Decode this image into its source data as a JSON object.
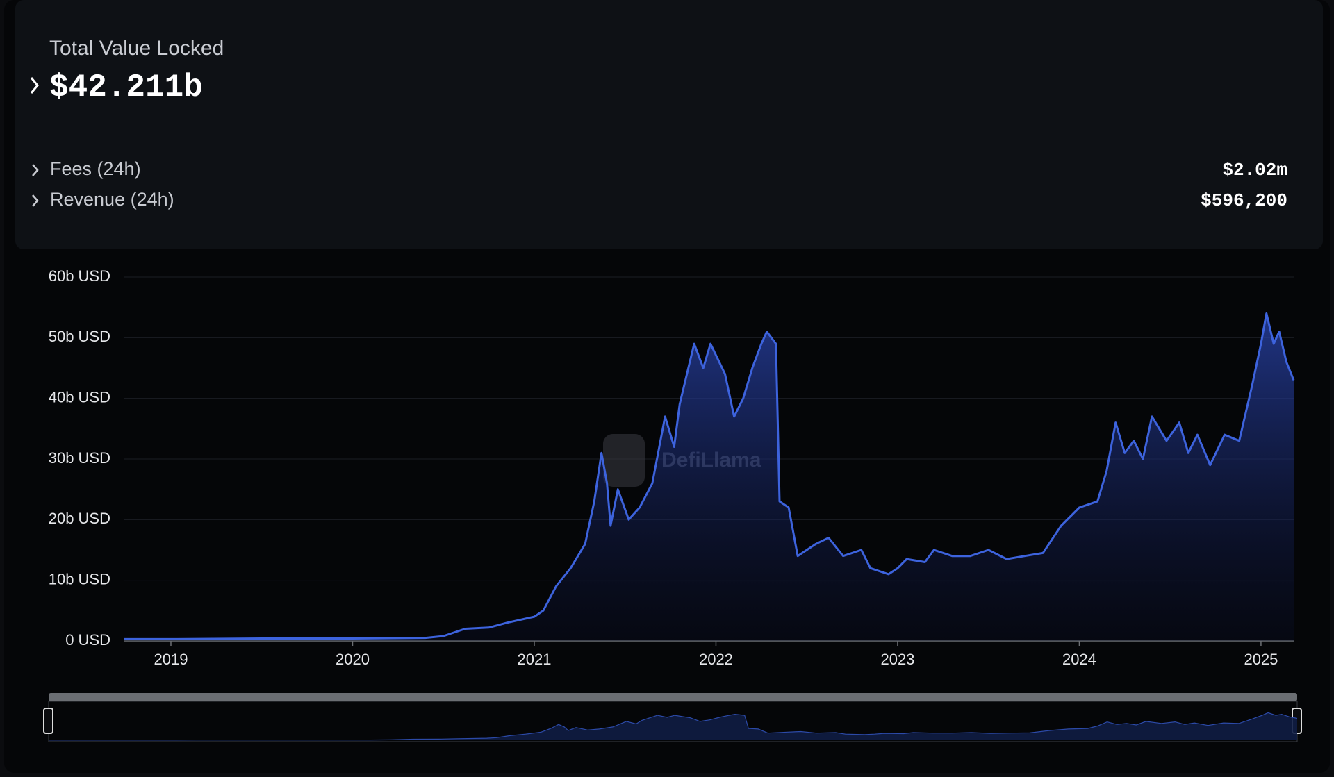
{
  "panel": {
    "title": "Total Value Locked",
    "value": "$42.211b",
    "rows": [
      {
        "label": "Fees (24h)",
        "value": "$2.02m"
      },
      {
        "label": "Revenue (24h)",
        "value": "$596,200"
      }
    ]
  },
  "chart_data": {
    "type": "area",
    "watermark": "DefiLlama",
    "x": [
      2018.74,
      2019.0,
      2019.5,
      2020.0,
      2020.4,
      2020.5,
      2020.62,
      2020.75,
      2020.85,
      2021.0,
      2021.05,
      2021.12,
      2021.2,
      2021.28,
      2021.33,
      2021.37,
      2021.4,
      2021.42,
      2021.46,
      2021.52,
      2021.58,
      2021.65,
      2021.72,
      2021.77,
      2021.8,
      2021.88,
      2021.93,
      2021.97,
      2022.05,
      2022.1,
      2022.15,
      2022.2,
      2022.25,
      2022.28,
      2022.33,
      2022.35,
      2022.4,
      2022.45,
      2022.55,
      2022.62,
      2022.7,
      2022.8,
      2022.85,
      2022.95,
      2023.0,
      2023.05,
      2023.15,
      2023.2,
      2023.3,
      2023.4,
      2023.5,
      2023.6,
      2023.7,
      2023.8,
      2023.9,
      2024.0,
      2024.1,
      2024.15,
      2024.2,
      2024.25,
      2024.3,
      2024.35,
      2024.4,
      2024.48,
      2024.55,
      2024.6,
      2024.65,
      2024.72,
      2024.8,
      2024.88,
      2024.95,
      2025.0,
      2025.03,
      2025.07,
      2025.1,
      2025.14,
      2025.18
    ],
    "series": [
      {
        "name": "TVL",
        "color": "#3d63dd",
        "values": [
          0.3,
          0.3,
          0.4,
          0.4,
          0.5,
          0.8,
          2,
          2.2,
          3,
          4,
          5,
          9,
          12,
          16,
          23,
          31,
          26,
          19,
          25,
          20,
          22,
          26,
          37,
          32,
          39,
          49,
          45,
          49,
          44,
          37,
          40,
          45,
          49,
          51,
          49,
          23,
          22,
          14,
          16,
          17,
          14,
          15,
          12,
          11,
          12,
          13.5,
          13,
          15,
          14,
          14,
          15,
          13.5,
          14,
          14.5,
          19,
          22,
          23,
          28,
          36,
          31,
          33,
          30,
          37,
          33,
          36,
          31,
          34,
          29,
          34,
          33,
          42,
          49,
          54,
          49,
          51,
          46,
          43
        ]
      }
    ],
    "xlim": [
      2018.74,
      2025.18
    ],
    "xticks": [
      2019,
      2020,
      2021,
      2022,
      2023,
      2024,
      2025
    ],
    "ylim": [
      0,
      60
    ],
    "yticks": [
      {
        "value": 0,
        "label": "0 USD"
      },
      {
        "value": 10,
        "label": "10b USD"
      },
      {
        "value": 20,
        "label": "20b USD"
      },
      {
        "value": 30,
        "label": "30b USD"
      },
      {
        "value": 40,
        "label": "40b USD"
      },
      {
        "value": 50,
        "label": "50b USD"
      },
      {
        "value": 60,
        "label": "60b USD"
      }
    ],
    "grid": true
  }
}
